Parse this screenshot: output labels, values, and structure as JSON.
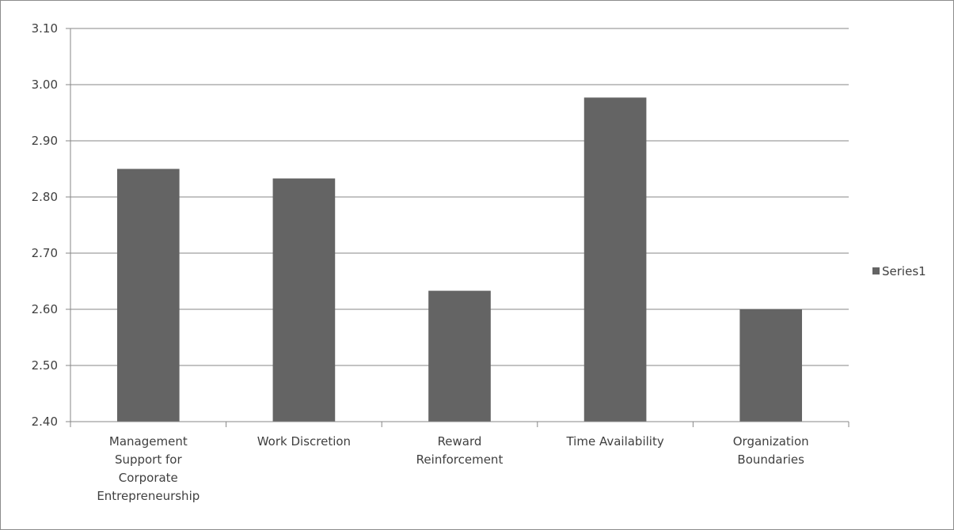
{
  "chart_data": {
    "type": "bar",
    "categories": [
      [
        "Management",
        "Support for",
        "Corporate",
        "Entrepreneurship"
      ],
      [
        "Work Discretion"
      ],
      [
        "Reward",
        "Reinforcement"
      ],
      [
        "Time Availability"
      ],
      [
        "Organization",
        "Boundaries"
      ]
    ],
    "series": [
      {
        "name": "Series1",
        "values": [
          2.85,
          2.833,
          2.633,
          2.977,
          2.6
        ],
        "color": "#646464"
      }
    ],
    "ylim": [
      2.4,
      3.1
    ],
    "yticks": [
      "2.40",
      "2.50",
      "2.60",
      "2.70",
      "2.80",
      "2.90",
      "3.00",
      "3.10"
    ],
    "grid": true,
    "legend_position": "right"
  }
}
